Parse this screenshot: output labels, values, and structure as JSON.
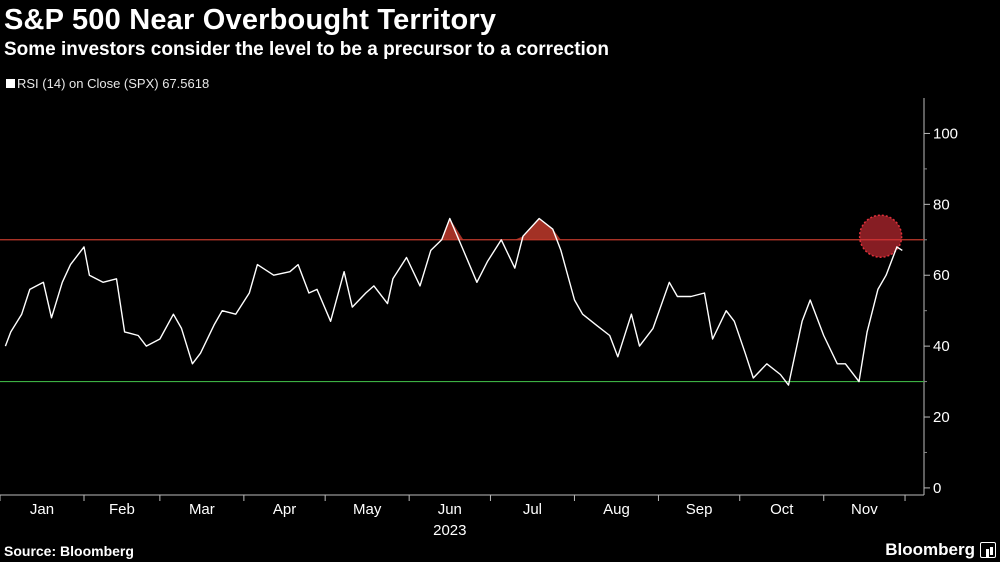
{
  "header": {
    "title": "S&P 500 Near Overbought Territory",
    "subtitle": "Some investors consider the level to be a precursor to a correction"
  },
  "legend": {
    "label": "RSI (14)  on Close (SPX) 67.5618"
  },
  "footer": {
    "source": "Source: Bloomberg",
    "brand": "Bloomberg"
  },
  "colors": {
    "background": "#000000",
    "line": "#ffffff",
    "overbought": "#c0392b",
    "oversold": "#3cb043",
    "highlight": "#e0303a",
    "grid": "#4a4a4a"
  },
  "chart_data": {
    "type": "line",
    "series": [
      {
        "name": "RSI (14)  on Close (SPX)",
        "last_value": 67.5618,
        "x": [
          "2023-01-03",
          "2023-01-05",
          "2023-01-09",
          "2023-01-12",
          "2023-01-17",
          "2023-01-20",
          "2023-01-24",
          "2023-01-27",
          "2023-02-01",
          "2023-02-03",
          "2023-02-08",
          "2023-02-13",
          "2023-02-16",
          "2023-02-21",
          "2023-02-24",
          "2023-03-01",
          "2023-03-06",
          "2023-03-09",
          "2023-03-13",
          "2023-03-16",
          "2023-03-21",
          "2023-03-24",
          "2023-03-29",
          "2023-04-03",
          "2023-04-06",
          "2023-04-12",
          "2023-04-18",
          "2023-04-21",
          "2023-04-25",
          "2023-04-28",
          "2023-05-03",
          "2023-05-08",
          "2023-05-11",
          "2023-05-16",
          "2023-05-19",
          "2023-05-24",
          "2023-05-26",
          "2023-05-31",
          "2023-06-05",
          "2023-06-09",
          "2023-06-13",
          "2023-06-16",
          "2023-06-21",
          "2023-06-26",
          "2023-06-30",
          "2023-07-05",
          "2023-07-10",
          "2023-07-13",
          "2023-07-19",
          "2023-07-24",
          "2023-07-27",
          "2023-08-01",
          "2023-08-04",
          "2023-08-09",
          "2023-08-14",
          "2023-08-17",
          "2023-08-22",
          "2023-08-25",
          "2023-08-30",
          "2023-09-05",
          "2023-09-08",
          "2023-09-13",
          "2023-09-18",
          "2023-09-21",
          "2023-09-26",
          "2023-09-29",
          "2023-10-03",
          "2023-10-06",
          "2023-10-11",
          "2023-10-16",
          "2023-10-19",
          "2023-10-24",
          "2023-10-27",
          "2023-11-01",
          "2023-11-06",
          "2023-11-09",
          "2023-11-14",
          "2023-11-17",
          "2023-11-21",
          "2023-11-24",
          "2023-11-28",
          "2023-11-30"
        ],
        "values": [
          40,
          44,
          49,
          56,
          58,
          48,
          58,
          63,
          68,
          60,
          58,
          59,
          44,
          43,
          40,
          42,
          49,
          45,
          35,
          38,
          46,
          50,
          49,
          55,
          63,
          60,
          61,
          63,
          55,
          56,
          47,
          61,
          51,
          55,
          57,
          52,
          59,
          65,
          57,
          67,
          70,
          76,
          67,
          58,
          64,
          70,
          62,
          71,
          76,
          73,
          67,
          53,
          49,
          46,
          43,
          37,
          49,
          40,
          45,
          58,
          54,
          54,
          55,
          42,
          50,
          47,
          38,
          31,
          35,
          32,
          29,
          47,
          53,
          43,
          35,
          35,
          30,
          44,
          56,
          60,
          68,
          67
        ]
      }
    ],
    "thresholds": [
      {
        "value": 70
      },
      {
        "value": 30
      }
    ],
    "x_ticks": [
      "Jan",
      "Feb",
      "Mar",
      "Apr",
      "May",
      "Jun",
      "Jul",
      "Aug",
      "Sep",
      "Oct",
      "Nov"
    ],
    "x_year_label": "2023",
    "y_ticks": [
      0,
      20,
      40,
      60,
      80,
      100
    ],
    "ylim": [
      -2,
      110
    ],
    "xlim": [
      "2023-01-01",
      "2023-12-08"
    ],
    "highlight": {
      "x": "2023-11-22",
      "y": 71
    },
    "grid": false,
    "y_axis_side": "right"
  }
}
